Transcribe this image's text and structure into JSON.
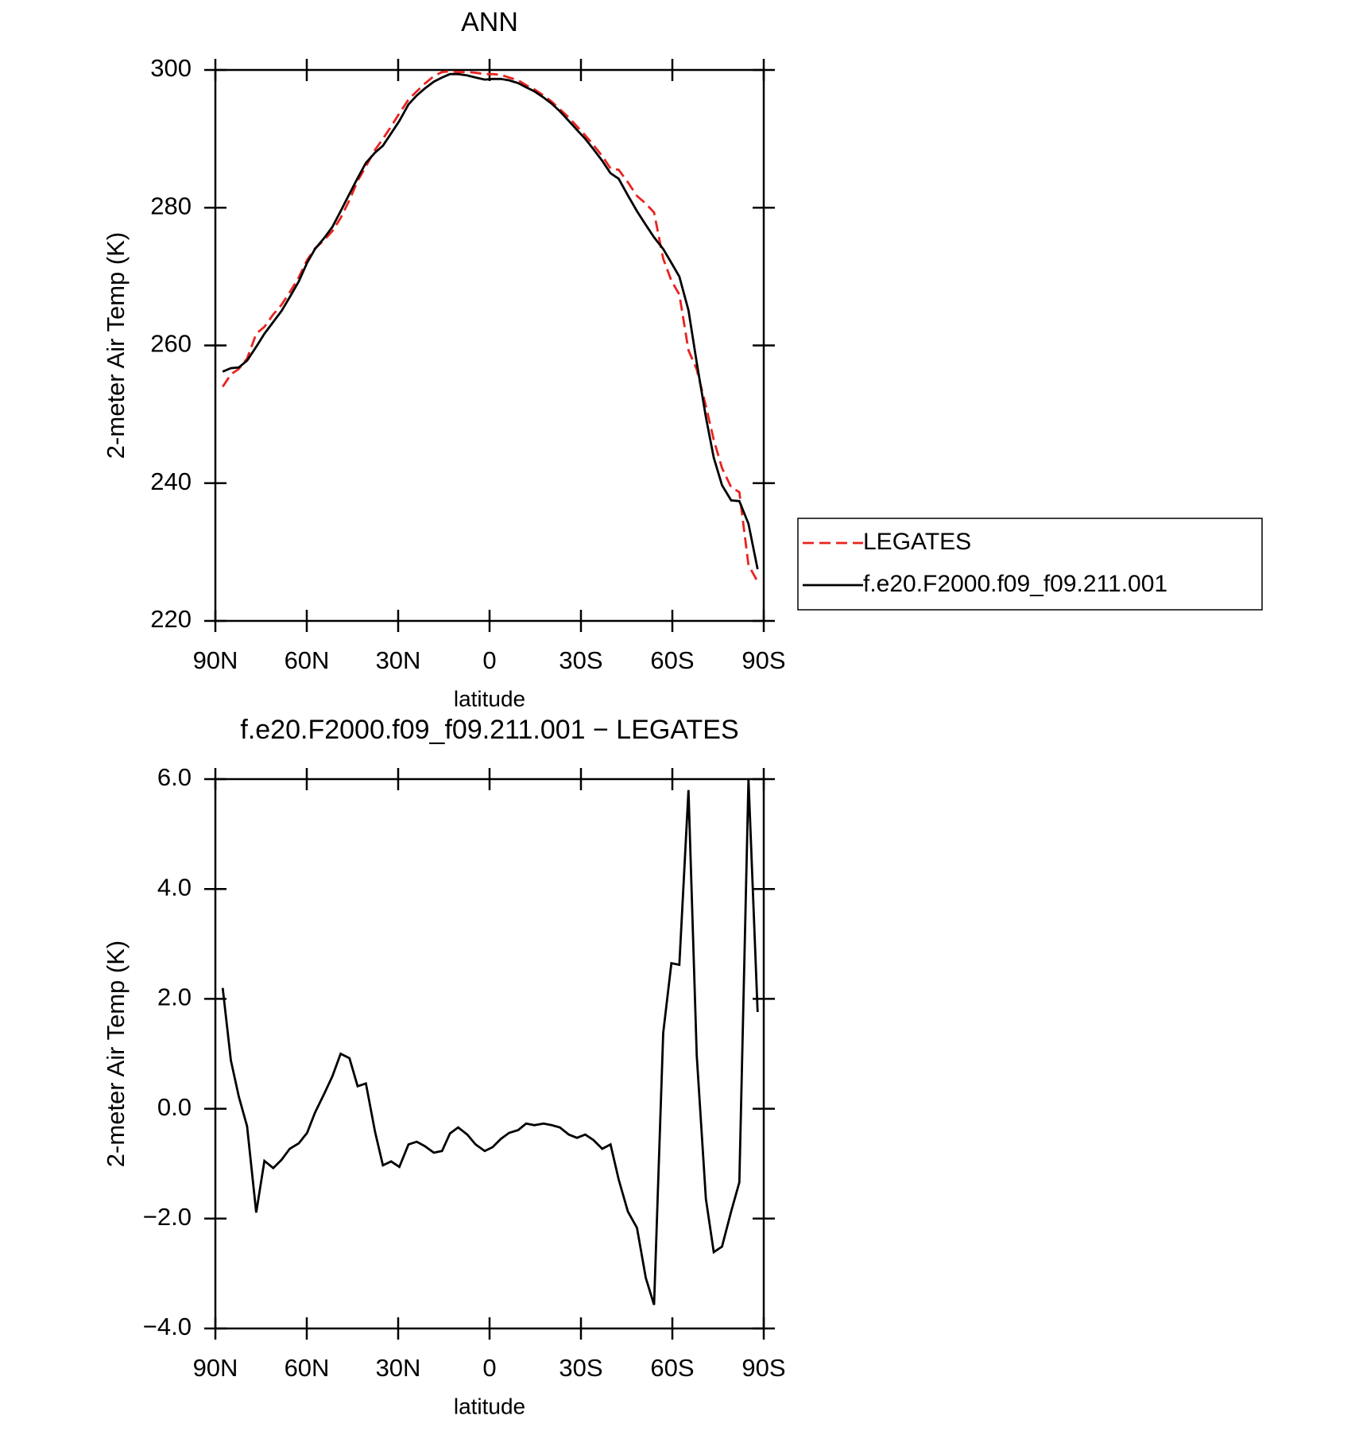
{
  "chart_data": [
    {
      "type": "line",
      "title": "ANN",
      "xlabel": "latitude",
      "ylabel": "2-meter Air Temp (K)",
      "x": [
        87.6,
        84.9,
        82.3,
        79.6,
        76.6,
        73.9,
        71.0,
        68.3,
        65.6,
        62.6,
        59.9,
        57.3,
        54.3,
        51.6,
        48.9,
        46.0,
        43.3,
        40.6,
        37.6,
        35.0,
        32.3,
        29.6,
        26.6,
        23.9,
        21.3,
        18.3,
        15.6,
        13.0,
        10.3,
        7.3,
        4.6,
        1.6,
        -1.0,
        -3.7,
        -6.4,
        -9.4,
        -12.0,
        -14.7,
        -17.7,
        -20.4,
        -23.1,
        -26.0,
        -28.7,
        -31.4,
        -34.1,
        -37.0,
        -39.7,
        -42.4,
        -45.4,
        -48.4,
        -51.3,
        -54.0,
        -57.0,
        -59.7,
        -62.3,
        -65.3,
        -68.0,
        -71.0,
        -73.6,
        -76.3,
        -79.3,
        -82.0,
        -85.0,
        -88.0
      ],
      "series": [
        {
          "name": "LEGATES",
          "color": "#e8231f",
          "line_style": "dashed",
          "values": [
            254.0,
            255.8,
            256.6,
            258.1,
            261.7,
            262.7,
            264.5,
            265.9,
            267.7,
            269.9,
            272.4,
            274.1,
            275.3,
            276.6,
            278.5,
            281.1,
            283.9,
            286.0,
            288.4,
            290.0,
            291.8,
            293.7,
            295.7,
            296.9,
            298.0,
            299.1,
            299.7,
            299.8,
            299.7,
            299.7,
            299.6,
            299.4,
            299.4,
            299.3,
            298.9,
            298.5,
            297.8,
            297.2,
            296.3,
            295.4,
            294.3,
            293.1,
            291.8,
            290.5,
            289.1,
            287.5,
            285.7,
            285.5,
            283.7,
            281.7,
            280.6,
            279.3,
            272.6,
            269.4,
            267.4,
            259.3,
            256.5,
            251.2,
            246.3,
            242.2,
            239.4,
            238.7,
            228.1,
            225.7
          ]
        },
        {
          "name": "f.e20.F2000.f09_f09.211.001",
          "color": "#000000",
          "line_style": "solid",
          "values": [
            256.2,
            256.7,
            256.8,
            257.8,
            259.8,
            261.7,
            263.4,
            265.0,
            267.0,
            269.3,
            272.0,
            274.0,
            275.6,
            277.2,
            279.5,
            282.0,
            284.3,
            286.5,
            288.0,
            289.0,
            290.8,
            292.6,
            295.0,
            296.3,
            297.3,
            298.3,
            298.9,
            299.4,
            299.4,
            299.2,
            298.9,
            298.6,
            298.7,
            298.7,
            298.5,
            298.1,
            297.5,
            296.9,
            296.0,
            295.1,
            294.0,
            292.6,
            291.3,
            290.0,
            288.5,
            286.8,
            285.0,
            284.2,
            281.8,
            279.5,
            277.5,
            275.7,
            274.0,
            272.0,
            270.0,
            265.1,
            257.5,
            249.6,
            243.7,
            239.7,
            237.5,
            237.4,
            234.1,
            227.5
          ]
        }
      ],
      "xlim": [
        90,
        -90
      ],
      "xticks": [
        {
          "value": 90,
          "label": "90N"
        },
        {
          "value": 60,
          "label": "60N"
        },
        {
          "value": 30,
          "label": "30N"
        },
        0,
        {
          "value": -30,
          "label": "30S"
        },
        {
          "value": -60,
          "label": "60S"
        },
        {
          "value": -90,
          "label": "90S"
        }
      ],
      "ylim": [
        220,
        300
      ],
      "yticks": [
        220,
        240,
        260,
        280,
        300
      ],
      "legend": "right"
    },
    {
      "type": "line",
      "title": "f.e20.F2000.f09_f09.211.001 − LEGATES",
      "xlabel": "latitude",
      "ylabel": "2-meter Air Temp (K)",
      "x": [
        87.6,
        84.9,
        82.3,
        79.6,
        76.6,
        73.9,
        71.0,
        68.3,
        65.6,
        62.6,
        59.9,
        57.3,
        54.3,
        51.6,
        48.9,
        46.0,
        43.3,
        40.6,
        37.6,
        35.0,
        32.3,
        29.6,
        26.6,
        23.9,
        21.3,
        18.3,
        15.6,
        13.0,
        10.3,
        7.3,
        4.6,
        1.6,
        -1.0,
        -3.7,
        -6.4,
        -9.4,
        -12.0,
        -14.7,
        -17.7,
        -20.4,
        -23.1,
        -26.0,
        -28.7,
        -31.4,
        -34.1,
        -37.0,
        -39.7,
        -42.4,
        -45.4,
        -48.4,
        -51.3,
        -54.0,
        -57.0,
        -59.7,
        -62.3,
        -65.3,
        -68.0,
        -71.0,
        -73.6,
        -76.3,
        -79.3,
        -82.0,
        -85.0,
        -88.0
      ],
      "color": "#000000",
      "values": [
        2.2,
        0.88,
        0.22,
        -0.32,
        -1.89,
        -0.95,
        -1.08,
        -0.93,
        -0.73,
        -0.63,
        -0.44,
        -0.07,
        0.27,
        0.59,
        1.0,
        0.92,
        0.41,
        0.46,
        -0.42,
        -1.03,
        -0.96,
        -1.06,
        -0.65,
        -0.6,
        -0.68,
        -0.8,
        -0.77,
        -0.45,
        -0.34,
        -0.47,
        -0.65,
        -0.77,
        -0.7,
        -0.55,
        -0.44,
        -0.39,
        -0.27,
        -0.3,
        -0.27,
        -0.3,
        -0.34,
        -0.47,
        -0.53,
        -0.47,
        -0.57,
        -0.73,
        -0.65,
        -1.29,
        -1.87,
        -2.17,
        -3.08,
        -3.57,
        1.38,
        2.65,
        2.62,
        5.8,
        0.97,
        -1.64,
        -2.61,
        -2.51,
        -1.87,
        -1.34,
        6.0,
        1.76
      ],
      "xlim": [
        90,
        -90
      ],
      "xticks": [
        {
          "value": 90,
          "label": "90N"
        },
        {
          "value": 60,
          "label": "60N"
        },
        {
          "value": 30,
          "label": "30N"
        },
        0,
        {
          "value": -30,
          "label": "30S"
        },
        {
          "value": -60,
          "label": "60S"
        },
        {
          "value": -90,
          "label": "90S"
        }
      ],
      "ylim": [
        -4,
        6
      ],
      "yticks": [
        {
          "value": -4,
          "label": "−4.0"
        },
        {
          "value": -2,
          "label": "−2.0"
        },
        {
          "value": 0,
          "label": "0.0"
        },
        {
          "value": 2,
          "label": "2.0"
        },
        {
          "value": 4,
          "label": "4.0"
        },
        {
          "value": 6,
          "label": "6.0"
        }
      ]
    }
  ]
}
